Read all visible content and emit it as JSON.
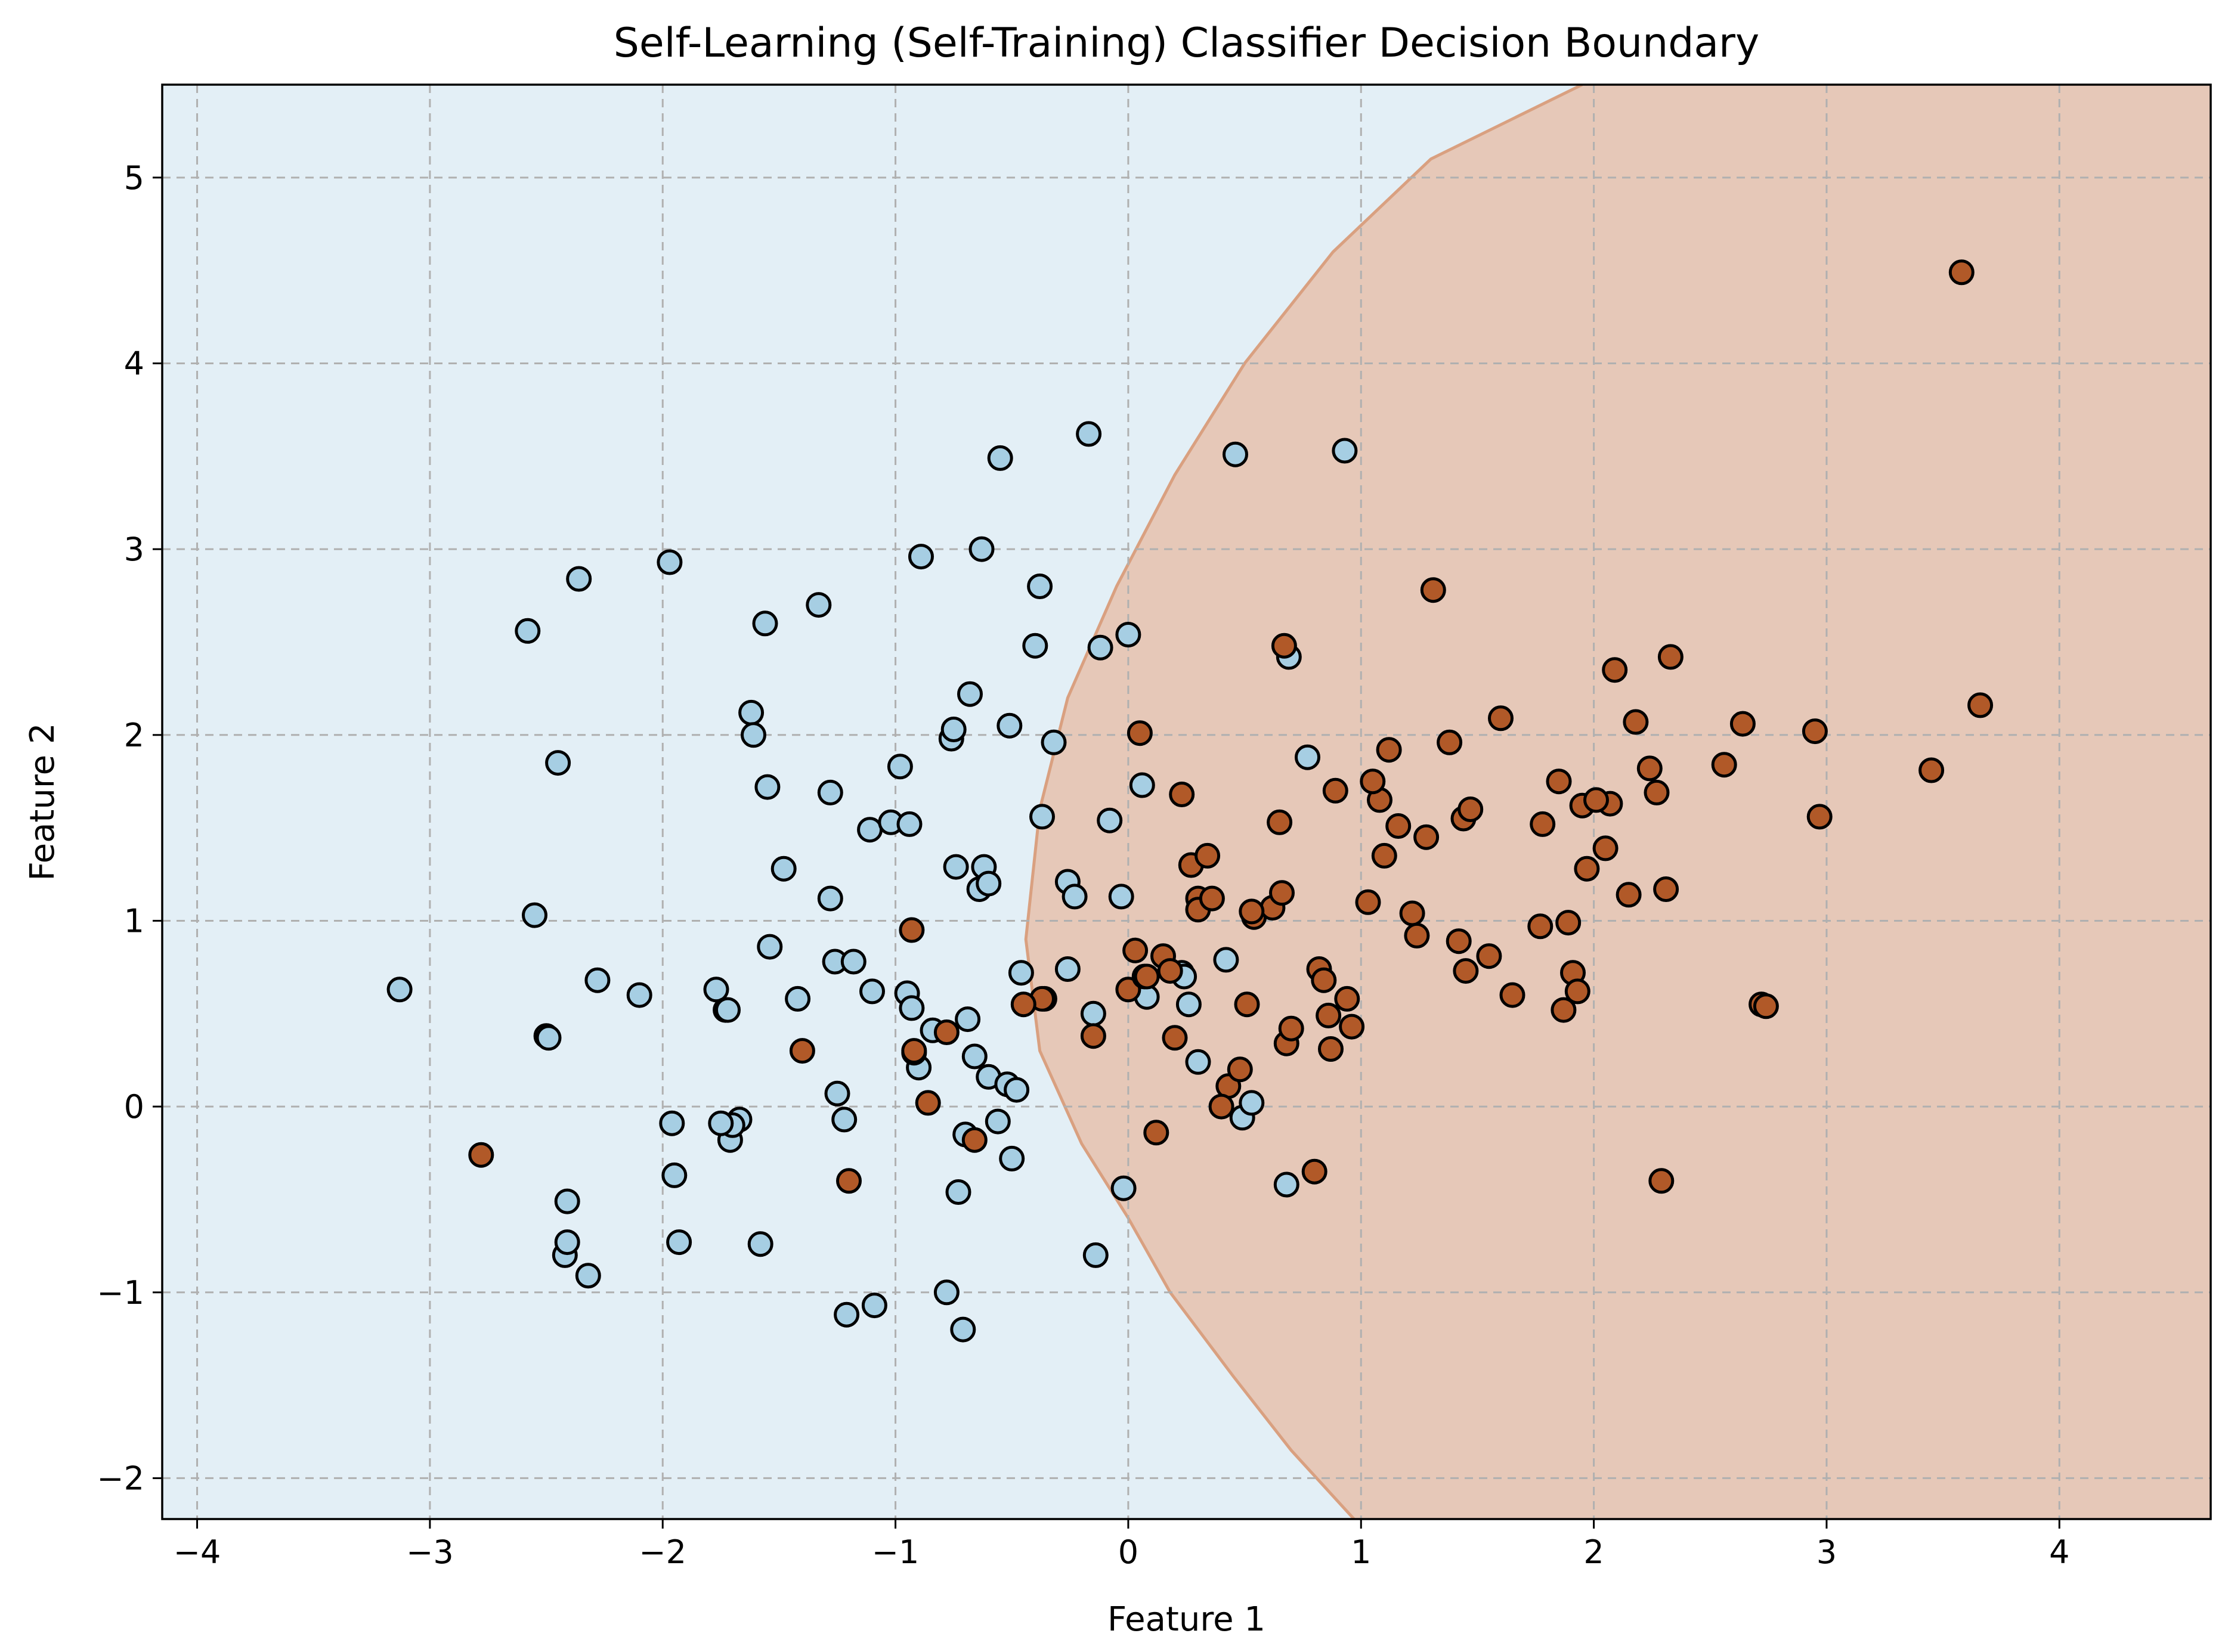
{
  "chart_data": {
    "type": "scatter",
    "title": "Self-Learning (Self-Training) Classifier Decision Boundary",
    "xlabel": "Feature 1",
    "ylabel": "Feature 2",
    "xlim": [
      -4.15,
      4.65
    ],
    "ylim": [
      -2.22,
      5.5
    ],
    "xticks": [
      -4,
      -3,
      -2,
      -1,
      0,
      1,
      2,
      3,
      4
    ],
    "yticks": [
      -2,
      -1,
      0,
      1,
      2,
      3,
      4,
      5
    ],
    "xtick_labels": [
      "−4",
      "−3",
      "−2",
      "−1",
      "0",
      "1",
      "2",
      "3",
      "4"
    ],
    "ytick_labels": [
      "−2",
      "−1",
      "0",
      "1",
      "2",
      "3",
      "4",
      "5"
    ],
    "grid": true,
    "colors": {
      "class0_point": "#a6cee3",
      "class1_point": "#b15928",
      "class0_region": "#e3eff6",
      "class1_region": "#e6c8b8",
      "boundary": "#d9a080",
      "grid": "#b0b0b0"
    },
    "decision_boundary": {
      "description": "parabolic boundary, class 1 region to the right",
      "points": [
        [
          0.97,
          -2.22
        ],
        [
          0.7,
          -1.85
        ],
        [
          0.45,
          -1.45
        ],
        [
          0.18,
          -1.0
        ],
        [
          0.0,
          -0.6
        ],
        [
          -0.2,
          -0.2
        ],
        [
          -0.38,
          0.3
        ],
        [
          -0.44,
          0.9
        ],
        [
          -0.38,
          1.6
        ],
        [
          -0.26,
          2.2
        ],
        [
          -0.05,
          2.8
        ],
        [
          0.2,
          3.4
        ],
        [
          0.5,
          4.0
        ],
        [
          0.88,
          4.6
        ],
        [
          1.3,
          5.1
        ],
        [
          1.95,
          5.5
        ]
      ]
    },
    "series": [
      {
        "class": 0,
        "x": [
          -3.13,
          -2.58,
          -2.55,
          -2.5,
          -2.49,
          -2.45,
          -2.42,
          -2.41,
          -2.41,
          -2.36,
          -2.32,
          -2.28,
          -2.1,
          -1.97,
          -1.96,
          -1.95,
          -1.93,
          -1.77,
          -1.73,
          -1.72,
          -1.71,
          -1.67,
          -1.62,
          -1.61,
          -1.58,
          -1.56,
          -1.55,
          -1.54,
          -1.48,
          -1.42,
          -1.33,
          -1.28,
          -1.28,
          -1.26,
          -1.25,
          -1.22,
          -1.21,
          -1.18,
          -1.11,
          -1.1,
          -1.09,
          -1.02,
          -0.98,
          -0.95,
          -0.94,
          -0.93,
          -0.9,
          -0.89,
          -0.84,
          -0.78,
          -0.76,
          -0.75,
          -0.74,
          -0.73,
          -0.71,
          -0.69,
          -0.68,
          -0.66,
          -0.64,
          -0.63,
          -0.62,
          -0.6,
          -0.6,
          -0.56,
          -0.55,
          -0.52,
          -0.51,
          -0.5,
          -0.48,
          -0.46,
          -0.4,
          -0.38,
          -0.37,
          -0.36,
          -0.32,
          -0.26,
          -0.26,
          -0.23,
          -0.17,
          -0.15,
          -0.14,
          -0.12,
          -0.08,
          -0.03,
          -0.02,
          0.0,
          0.06,
          0.08,
          0.23,
          0.24,
          0.26,
          0.3,
          0.42,
          0.46,
          0.49,
          0.53,
          0.68,
          0.69,
          0.77,
          0.93,
          -1.7,
          -1.75,
          -0.7
        ],
        "y": [
          0.63,
          2.56,
          1.03,
          0.38,
          0.37,
          1.85,
          -0.8,
          -0.51,
          -0.73,
          2.84,
          -0.91,
          0.68,
          0.6,
          2.93,
          -0.09,
          -0.37,
          -0.73,
          0.63,
          0.52,
          0.52,
          -0.18,
          -0.07,
          2.12,
          2.0,
          -0.74,
          2.6,
          1.72,
          0.86,
          1.28,
          0.58,
          2.7,
          1.69,
          1.12,
          0.78,
          0.07,
          -0.07,
          -1.12,
          0.78,
          1.49,
          0.62,
          -1.07,
          1.53,
          1.83,
          0.61,
          1.52,
          0.53,
          0.21,
          2.96,
          0.41,
          -1.0,
          1.98,
          2.03,
          1.29,
          -0.46,
          -1.2,
          0.47,
          2.22,
          0.27,
          1.17,
          3.0,
          1.29,
          1.2,
          0.16,
          -0.08,
          3.49,
          0.12,
          2.05,
          -0.28,
          0.09,
          0.72,
          2.48,
          2.8,
          1.56,
          0.58,
          1.96,
          1.21,
          0.74,
          1.13,
          3.62,
          0.5,
          -0.8,
          2.47,
          1.54,
          1.13,
          -0.44,
          2.54,
          1.73,
          0.59,
          0.72,
          0.7,
          0.55,
          0.24,
          0.79,
          3.51,
          -0.06,
          0.02,
          -0.42,
          2.42,
          1.88,
          3.53,
          -0.1,
          -0.09,
          -0.15
        ]
      },
      {
        "class": 1,
        "x": [
          -2.78,
          -1.4,
          -1.2,
          -0.93,
          -0.92,
          -0.86,
          -0.78,
          -0.66,
          -0.37,
          -0.15,
          0.0,
          0.03,
          0.05,
          0.07,
          0.12,
          0.15,
          0.18,
          0.2,
          0.23,
          0.27,
          0.3,
          0.3,
          0.34,
          0.36,
          0.43,
          0.48,
          0.51,
          0.54,
          0.62,
          0.65,
          0.66,
          0.68,
          0.7,
          0.8,
          0.82,
          0.84,
          0.86,
          0.87,
          0.89,
          0.94,
          0.96,
          1.03,
          1.08,
          1.1,
          1.12,
          1.16,
          1.22,
          1.24,
          1.28,
          1.31,
          1.38,
          1.42,
          1.44,
          1.45,
          1.47,
          1.55,
          1.6,
          1.65,
          1.77,
          1.78,
          1.85,
          1.87,
          1.89,
          1.91,
          1.93,
          1.95,
          1.97,
          2.05,
          2.07,
          2.09,
          2.15,
          2.18,
          2.24,
          2.27,
          2.29,
          2.31,
          2.33,
          2.56,
          2.64,
          2.72,
          2.74,
          2.95,
          2.97,
          3.45,
          3.58,
          3.66,
          0.08,
          0.67,
          0.4,
          -0.92,
          -0.45,
          0.53,
          1.05,
          2.01
        ],
        "y": [
          -0.26,
          0.3,
          -0.4,
          0.95,
          0.29,
          0.02,
          0.4,
          -0.18,
          0.58,
          0.38,
          0.63,
          0.84,
          2.01,
          0.7,
          -0.14,
          0.81,
          0.73,
          0.37,
          1.68,
          1.3,
          1.12,
          1.06,
          1.35,
          1.12,
          0.11,
          0.2,
          0.55,
          1.02,
          1.07,
          1.53,
          1.15,
          0.34,
          0.42,
          -0.35,
          0.74,
          0.68,
          0.49,
          0.31,
          1.7,
          0.58,
          0.43,
          1.1,
          1.65,
          1.35,
          1.92,
          1.51,
          1.04,
          0.92,
          1.45,
          2.78,
          1.96,
          0.89,
          1.55,
          0.73,
          1.6,
          0.81,
          2.09,
          0.6,
          0.97,
          1.52,
          1.75,
          0.52,
          0.99,
          0.72,
          0.62,
          1.62,
          1.28,
          1.39,
          1.63,
          2.35,
          1.14,
          2.07,
          1.82,
          1.69,
          -0.4,
          1.17,
          2.42,
          1.84,
          2.06,
          0.55,
          0.54,
          2.02,
          1.56,
          1.81,
          4.49,
          2.16,
          0.7,
          2.48,
          0.0,
          0.3,
          0.55,
          1.05,
          1.75,
          1.65
        ]
      }
    ]
  }
}
